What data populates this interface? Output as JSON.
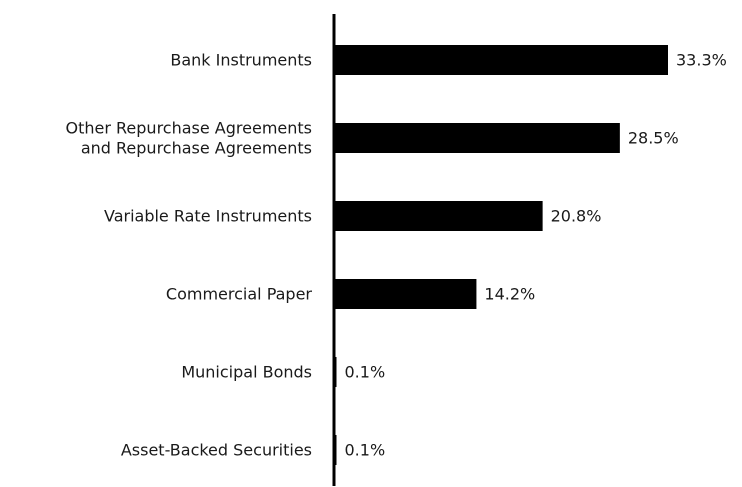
{
  "chart_data": {
    "type": "bar",
    "orientation": "horizontal",
    "categories": [
      [
        "Bank Instruments"
      ],
      [
        "Other Repurchase Agreements",
        "and Repurchase Agreements"
      ],
      [
        "Variable Rate Instruments"
      ],
      [
        "Commercial Paper"
      ],
      [
        "Municipal Bonds"
      ],
      [
        "Asset-Backed Securities"
      ]
    ],
    "values": [
      33.3,
      28.5,
      20.8,
      14.2,
      0.1,
      0.1
    ],
    "value_labels": [
      "33.3%",
      "28.5%",
      "20.8%",
      "14.2%",
      "0.1%",
      "0.1%"
    ],
    "title": "",
    "xlabel": "",
    "ylabel": "",
    "xlim": [
      0,
      33.3
    ],
    "grid": false,
    "legend": "none",
    "bar_color": "#000000"
  }
}
